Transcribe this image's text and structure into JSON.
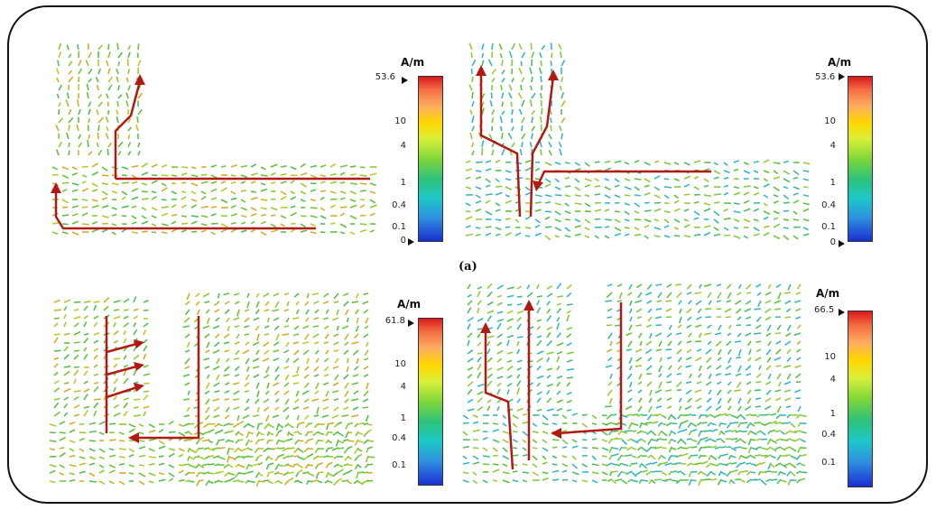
{
  "caption": "(a)",
  "scale_unit": "A/m",
  "panels": [
    {
      "max_label": "53.6",
      "ticks": [
        "10",
        "4",
        "1",
        "0.4",
        "0.1",
        "0"
      ]
    },
    {
      "max_label": "53.6",
      "ticks": [
        "10",
        "4",
        "1",
        "0.4",
        "0.1",
        "0"
      ]
    },
    {
      "max_label": "61.8",
      "ticks": [
        "10",
        "4",
        "1",
        "0.4",
        "0.1"
      ]
    },
    {
      "max_label": "66.5",
      "ticks": [
        "10",
        "4",
        "1",
        "0.4",
        "0.1"
      ]
    }
  ],
  "colors": {
    "current_path": "#b11a14",
    "arrow_field_high": "#d08a20",
    "arrow_field_mid": "#5cc23a",
    "arrow_field_low": "#35b6c8",
    "frame": "#111111"
  }
}
